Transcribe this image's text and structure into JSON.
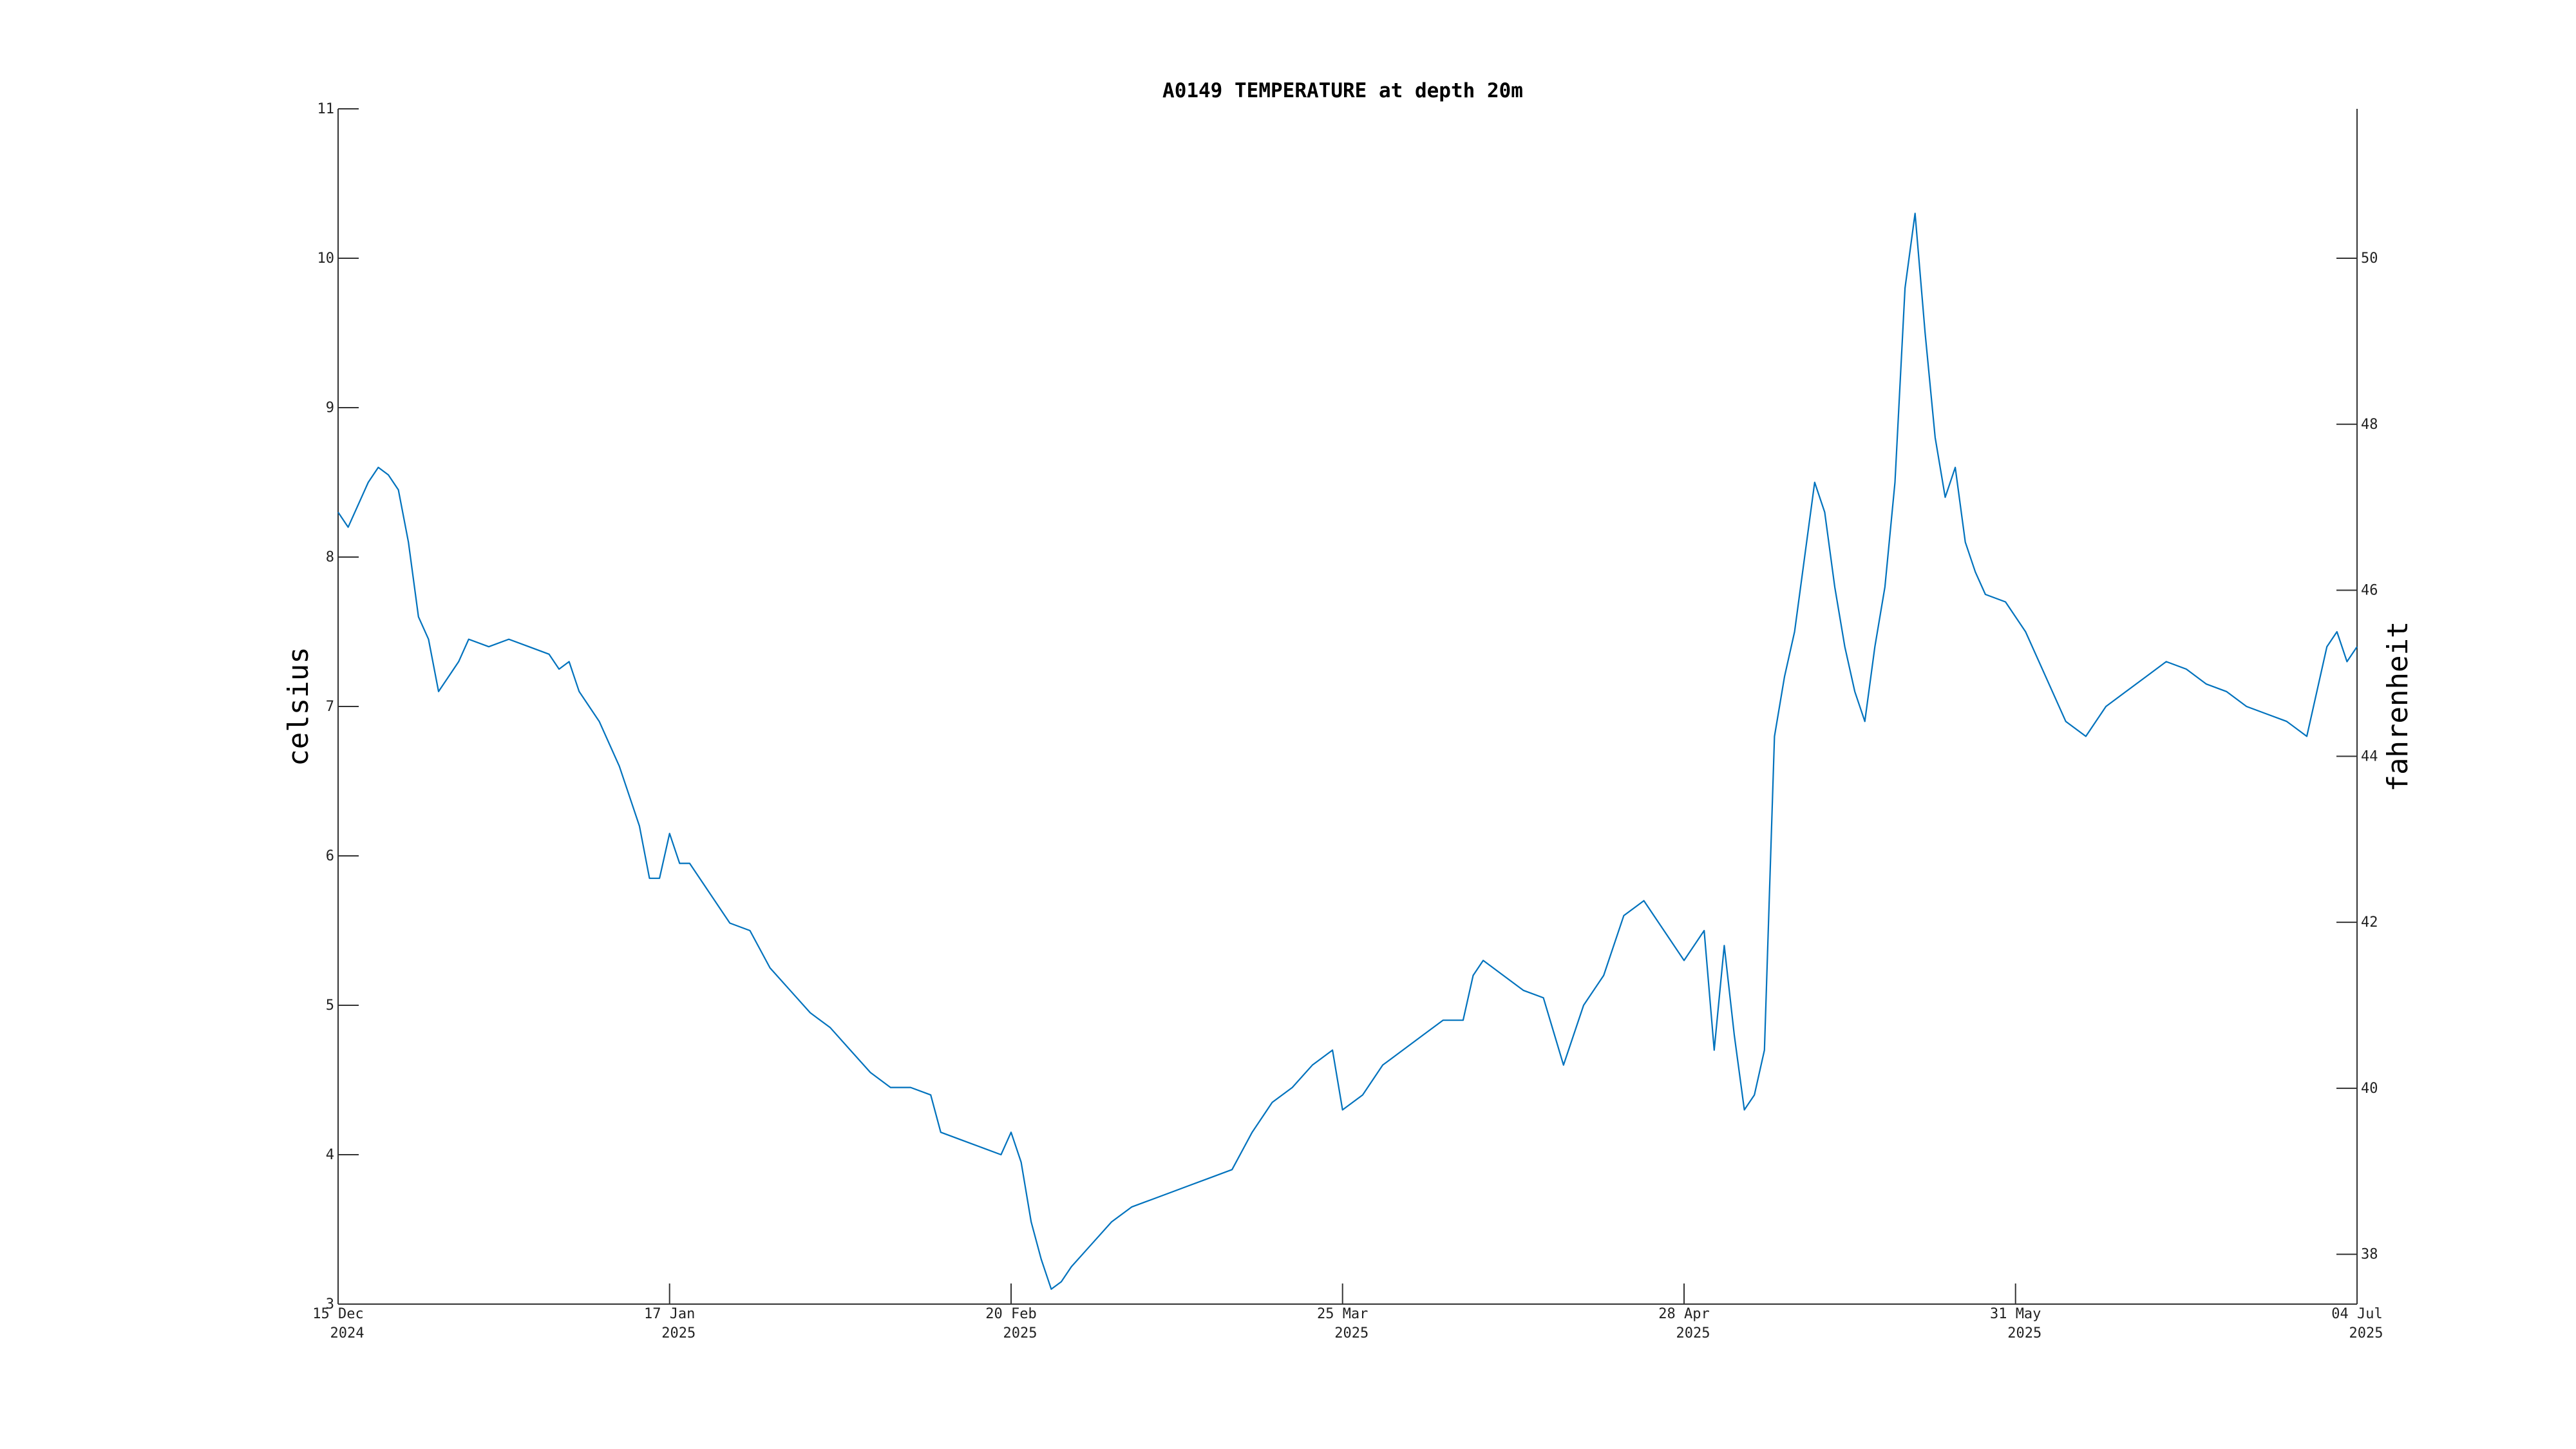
{
  "chart_data": {
    "type": "line",
    "title": "A0149 TEMPERATURE at depth 20m",
    "ylabel": "celsius",
    "y2label": "fahrenheit",
    "xlabel": "",
    "xlim": [
      "2024-12-15",
      "2025-07-04"
    ],
    "ylim": [
      3,
      11
    ],
    "y2lim": [
      37.4,
      51.8
    ],
    "x_ticks": [
      {
        "date": "2024-12-15",
        "line1": "15 Dec",
        "line2": "2024"
      },
      {
        "date": "2025-01-17",
        "line1": "17 Jan",
        "line2": "2025"
      },
      {
        "date": "2025-02-20",
        "line1": "20 Feb",
        "line2": "2025"
      },
      {
        "date": "2025-03-25",
        "line1": "25 Mar",
        "line2": "2025"
      },
      {
        "date": "2025-04-28",
        "line1": "28 Apr",
        "line2": "2025"
      },
      {
        "date": "2025-05-31",
        "line1": "31 May",
        "line2": "2025"
      },
      {
        "date": "2025-07-04",
        "line1": "04 Jul",
        "line2": "2025"
      }
    ],
    "y_ticks": [
      3,
      4,
      5,
      6,
      7,
      8,
      9,
      10,
      11
    ],
    "y2_ticks": [
      38,
      40,
      42,
      44,
      46,
      48,
      50
    ],
    "grid": false,
    "legend": "none",
    "series": [
      {
        "color": "#0072BD",
        "points": [
          [
            "2024-12-15",
            8.3
          ],
          [
            "2024-12-16",
            8.2
          ],
          [
            "2024-12-17",
            8.35
          ],
          [
            "2024-12-18",
            8.5
          ],
          [
            "2024-12-19",
            8.6
          ],
          [
            "2024-12-20",
            8.55
          ],
          [
            "2024-12-21",
            8.45
          ],
          [
            "2024-12-22",
            8.1
          ],
          [
            "2024-12-23",
            7.6
          ],
          [
            "2024-12-24",
            7.45
          ],
          [
            "2024-12-25",
            7.1
          ],
          [
            "2024-12-26",
            7.2
          ],
          [
            "2024-12-27",
            7.3
          ],
          [
            "2024-12-28",
            7.45
          ],
          [
            "2024-12-30",
            7.4
          ],
          [
            "2025-01-01",
            7.45
          ],
          [
            "2025-01-03",
            7.4
          ],
          [
            "2025-01-05",
            7.35
          ],
          [
            "2025-01-06",
            7.25
          ],
          [
            "2025-01-07",
            7.3
          ],
          [
            "2025-01-08",
            7.1
          ],
          [
            "2025-01-10",
            6.9
          ],
          [
            "2025-01-12",
            6.6
          ],
          [
            "2025-01-13",
            6.4
          ],
          [
            "2025-01-14",
            6.2
          ],
          [
            "2025-01-15",
            5.85
          ],
          [
            "2025-01-16",
            5.85
          ],
          [
            "2025-01-17",
            6.15
          ],
          [
            "2025-01-18",
            5.95
          ],
          [
            "2025-01-19",
            5.95
          ],
          [
            "2025-01-21",
            5.75
          ],
          [
            "2025-01-23",
            5.55
          ],
          [
            "2025-01-25",
            5.5
          ],
          [
            "2025-01-27",
            5.25
          ],
          [
            "2025-01-29",
            5.1
          ],
          [
            "2025-01-31",
            4.95
          ],
          [
            "2025-02-02",
            4.85
          ],
          [
            "2025-02-04",
            4.7
          ],
          [
            "2025-02-06",
            4.55
          ],
          [
            "2025-02-08",
            4.45
          ],
          [
            "2025-02-10",
            4.45
          ],
          [
            "2025-02-12",
            4.4
          ],
          [
            "2025-02-13",
            4.15
          ],
          [
            "2025-02-15",
            4.1
          ],
          [
            "2025-02-17",
            4.05
          ],
          [
            "2025-02-19",
            4.0
          ],
          [
            "2025-02-20",
            4.15
          ],
          [
            "2025-02-21",
            3.95
          ],
          [
            "2025-02-22",
            3.55
          ],
          [
            "2025-02-23",
            3.3
          ],
          [
            "2025-02-24",
            3.1
          ],
          [
            "2025-02-25",
            3.15
          ],
          [
            "2025-02-26",
            3.25
          ],
          [
            "2025-02-28",
            3.4
          ],
          [
            "2025-03-02",
            3.55
          ],
          [
            "2025-03-04",
            3.65
          ],
          [
            "2025-03-06",
            3.7
          ],
          [
            "2025-03-08",
            3.75
          ],
          [
            "2025-03-10",
            3.8
          ],
          [
            "2025-03-12",
            3.85
          ],
          [
            "2025-03-14",
            3.9
          ],
          [
            "2025-03-16",
            4.15
          ],
          [
            "2025-03-18",
            4.35
          ],
          [
            "2025-03-20",
            4.45
          ],
          [
            "2025-03-22",
            4.6
          ],
          [
            "2025-03-24",
            4.7
          ],
          [
            "2025-03-25",
            4.3
          ],
          [
            "2025-03-27",
            4.4
          ],
          [
            "2025-03-29",
            4.6
          ],
          [
            "2025-03-31",
            4.7
          ],
          [
            "2025-04-02",
            4.8
          ],
          [
            "2025-04-04",
            4.9
          ],
          [
            "2025-04-06",
            4.9
          ],
          [
            "2025-04-07",
            5.2
          ],
          [
            "2025-04-08",
            5.3
          ],
          [
            "2025-04-10",
            5.2
          ],
          [
            "2025-04-12",
            5.1
          ],
          [
            "2025-04-14",
            5.05
          ],
          [
            "2025-04-16",
            4.6
          ],
          [
            "2025-04-18",
            5.0
          ],
          [
            "2025-04-20",
            5.2
          ],
          [
            "2025-04-22",
            5.6
          ],
          [
            "2025-04-24",
            5.7
          ],
          [
            "2025-04-26",
            5.5
          ],
          [
            "2025-04-28",
            5.3
          ],
          [
            "2025-04-30",
            5.5
          ],
          [
            "2025-05-01",
            4.7
          ],
          [
            "2025-05-02",
            5.4
          ],
          [
            "2025-05-03",
            4.8
          ],
          [
            "2025-05-04",
            4.3
          ],
          [
            "2025-05-05",
            4.4
          ],
          [
            "2025-05-06",
            4.7
          ],
          [
            "2025-05-07",
            6.8
          ],
          [
            "2025-05-08",
            7.2
          ],
          [
            "2025-05-09",
            7.5
          ],
          [
            "2025-05-10",
            8.0
          ],
          [
            "2025-05-11",
            8.5
          ],
          [
            "2025-05-12",
            8.3
          ],
          [
            "2025-05-13",
            7.8
          ],
          [
            "2025-05-14",
            7.4
          ],
          [
            "2025-05-15",
            7.1
          ],
          [
            "2025-05-16",
            6.9
          ],
          [
            "2025-05-17",
            7.4
          ],
          [
            "2025-05-18",
            7.8
          ],
          [
            "2025-05-19",
            8.5
          ],
          [
            "2025-05-20",
            9.8
          ],
          [
            "2025-05-21",
            10.3
          ],
          [
            "2025-05-22",
            9.5
          ],
          [
            "2025-05-23",
            8.8
          ],
          [
            "2025-05-24",
            8.4
          ],
          [
            "2025-05-25",
            8.6
          ],
          [
            "2025-05-26",
            8.1
          ],
          [
            "2025-05-27",
            7.9
          ],
          [
            "2025-05-28",
            7.75
          ],
          [
            "2025-05-30",
            7.7
          ],
          [
            "2025-06-01",
            7.5
          ],
          [
            "2025-06-03",
            7.2
          ],
          [
            "2025-06-05",
            6.9
          ],
          [
            "2025-06-07",
            6.8
          ],
          [
            "2025-06-09",
            7.0
          ],
          [
            "2025-06-11",
            7.1
          ],
          [
            "2025-06-13",
            7.2
          ],
          [
            "2025-06-15",
            7.3
          ],
          [
            "2025-06-17",
            7.25
          ],
          [
            "2025-06-19",
            7.15
          ],
          [
            "2025-06-21",
            7.1
          ],
          [
            "2025-06-23",
            7.0
          ],
          [
            "2025-06-25",
            6.95
          ],
          [
            "2025-06-27",
            6.9
          ],
          [
            "2025-06-29",
            6.8
          ],
          [
            "2025-07-01",
            7.4
          ],
          [
            "2025-07-02",
            7.5
          ],
          [
            "2025-07-03",
            7.3
          ],
          [
            "2025-07-04",
            7.4
          ]
        ]
      }
    ]
  }
}
